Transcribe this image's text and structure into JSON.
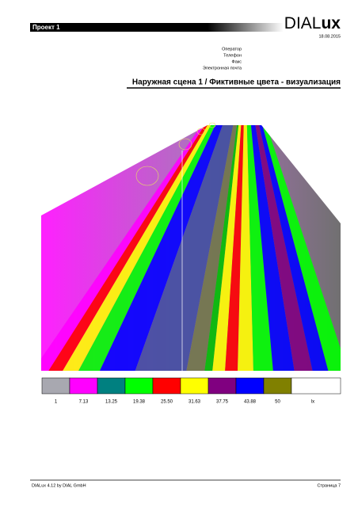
{
  "header": {
    "project": "Проект 1",
    "logo_main": "DIAL",
    "logo_bold": "ux",
    "date": "18.08.2015"
  },
  "contact": [
    "Оператор",
    "Телефон",
    "Факс",
    "Электронная почта"
  ],
  "section_title": "Наружная сцена 1 / Фиктивные цвета - визуализация",
  "legend": {
    "labels": [
      "1",
      "7.13",
      "13.25",
      "19.38",
      "25.50",
      "31.63",
      "37.75",
      "43.88",
      "50"
    ],
    "unit": "lx",
    "colors": [
      "#a8a8b0",
      "#ff00ff",
      "#008080",
      "#00ff00",
      "#ff0000",
      "#ffff00",
      "#800080",
      "#0000ff",
      "#808000"
    ]
  },
  "footer": {
    "left": "DIALux 4.12 by DIAL GmbH",
    "right": "Страница 7"
  }
}
